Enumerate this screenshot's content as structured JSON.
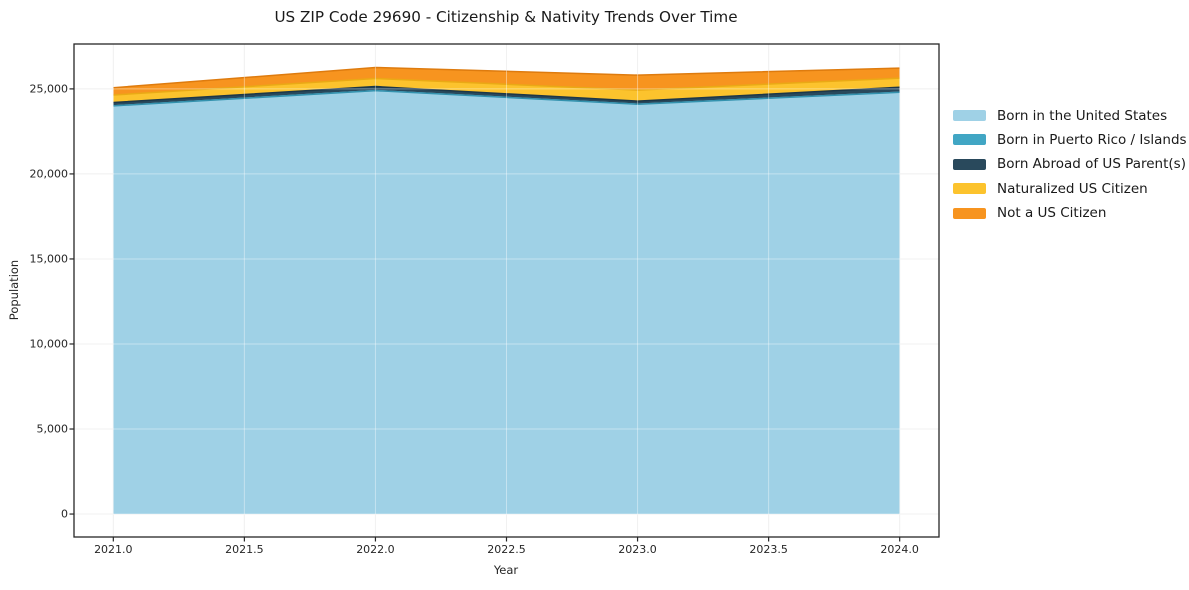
{
  "title": "US ZIP Code 29690 - Citizenship & Nativity Trends Over Time",
  "chart_data": {
    "type": "area",
    "stacked": true,
    "title": "US ZIP Code 29690 - Citizenship & Nativity Trends Over Time",
    "xlabel": "Year",
    "ylabel": "Population",
    "x": [
      2021,
      2022,
      2023,
      2024
    ],
    "series": [
      {
        "name": "Born in the United States",
        "color": "#9FD1E6",
        "edge": "#86c2dc",
        "values": [
          24000,
          24900,
          24100,
          24800
        ]
      },
      {
        "name": "Born in Puerto Rico / Islands",
        "color": "#41A6C4",
        "edge": "#3392ae",
        "values": [
          0,
          0,
          0,
          0
        ]
      },
      {
        "name": "Born Abroad of US Parent(s)",
        "color": "#29495C",
        "edge": "#1d3748",
        "values": [
          200,
          240,
          180,
          300
        ]
      },
      {
        "name": "Naturalized US Citizen",
        "color": "#FCC32D",
        "edge": "#eaa915",
        "values": [
          440,
          470,
          650,
          530
        ]
      },
      {
        "name": "Not a US Citizen",
        "color": "#F7941F",
        "edge": "#de7b0e",
        "values": [
          430,
          650,
          880,
          590
        ]
      }
    ],
    "totals": [
      25070,
      26260,
      25810,
      26220
    ],
    "x_ticks": [
      "2021.0",
      "2021.5",
      "2022.0",
      "2022.5",
      "2023.0",
      "2023.5",
      "2024.0"
    ],
    "x_tick_values": [
      2021,
      2021.5,
      2022,
      2022.5,
      2023,
      2023.5,
      2024
    ],
    "y_ticks": [
      "0",
      "5,000",
      "10,000",
      "15,000",
      "20,000",
      "25,000"
    ],
    "y_tick_values": [
      0,
      5000,
      10000,
      15000,
      20000,
      25000
    ],
    "xlim": [
      2020.85,
      2024.15
    ],
    "ylim": [
      -1350,
      27640
    ],
    "grid": true,
    "legend_position": "right-outside",
    "grid_color": "#e8e8e8",
    "spine_color": "#262626"
  }
}
